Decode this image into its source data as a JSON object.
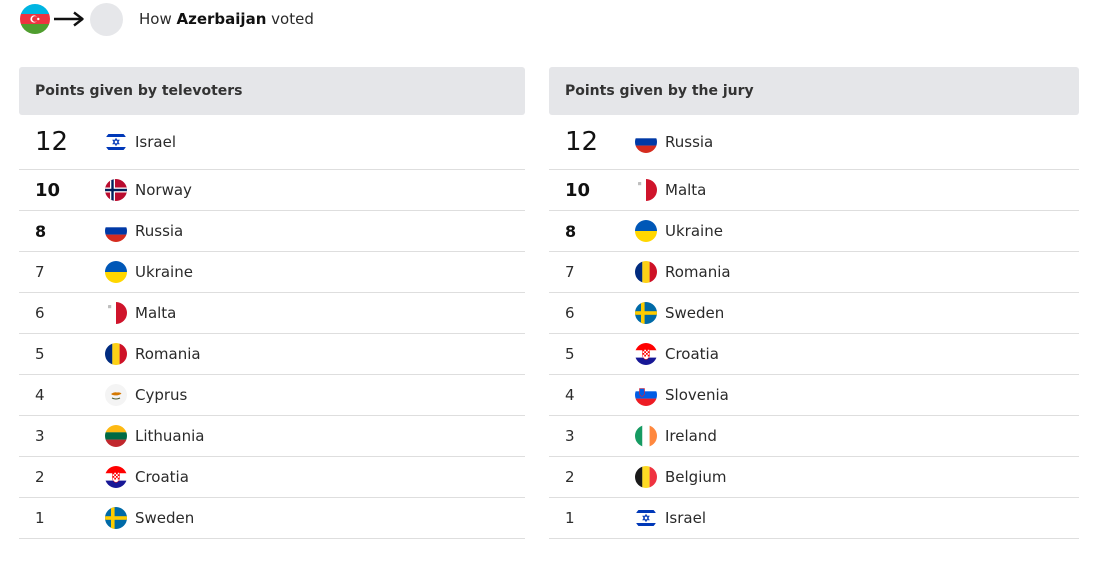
{
  "header": {
    "prefix": "How",
    "country": "Azerbaijan",
    "suffix": "voted"
  },
  "televoters": {
    "title": "Points given by televoters",
    "rows": [
      {
        "points": "12",
        "country": "Israel",
        "flag": "israel-flag"
      },
      {
        "points": "10",
        "country": "Norway",
        "flag": "norway-flag"
      },
      {
        "points": "8",
        "country": "Russia",
        "flag": "russia-flag"
      },
      {
        "points": "7",
        "country": "Ukraine",
        "flag": "ukraine-flag"
      },
      {
        "points": "6",
        "country": "Malta",
        "flag": "malta-flag"
      },
      {
        "points": "5",
        "country": "Romania",
        "flag": "romania-flag"
      },
      {
        "points": "4",
        "country": "Cyprus",
        "flag": "cyprus-flag"
      },
      {
        "points": "3",
        "country": "Lithuania",
        "flag": "lithuania-flag"
      },
      {
        "points": "2",
        "country": "Croatia",
        "flag": "croatia-flag"
      },
      {
        "points": "1",
        "country": "Sweden",
        "flag": "sweden-flag"
      }
    ]
  },
  "jury": {
    "title": "Points given by the jury",
    "rows": [
      {
        "points": "12",
        "country": "Russia",
        "flag": "russia-flag"
      },
      {
        "points": "10",
        "country": "Malta",
        "flag": "malta-flag"
      },
      {
        "points": "8",
        "country": "Ukraine",
        "flag": "ukraine-flag"
      },
      {
        "points": "7",
        "country": "Romania",
        "flag": "romania-flag"
      },
      {
        "points": "6",
        "country": "Sweden",
        "flag": "sweden-flag"
      },
      {
        "points": "5",
        "country": "Croatia",
        "flag": "croatia-flag"
      },
      {
        "points": "4",
        "country": "Slovenia",
        "flag": "slovenia-flag"
      },
      {
        "points": "3",
        "country": "Ireland",
        "flag": "ireland-flag"
      },
      {
        "points": "2",
        "country": "Belgium",
        "flag": "belgium-flag"
      },
      {
        "points": "1",
        "country": "Israel",
        "flag": "israel-flag"
      }
    ]
  }
}
